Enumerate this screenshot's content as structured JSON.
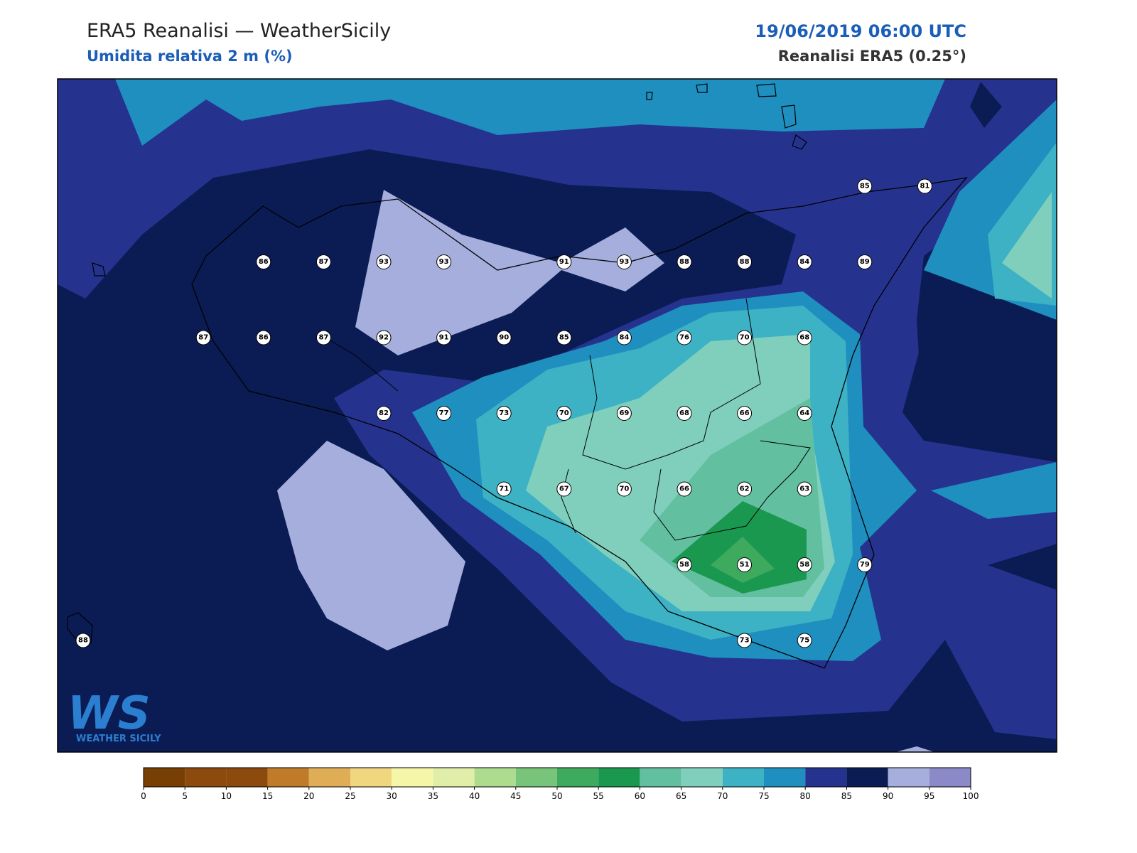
{
  "header": {
    "title": "ERA5 Reanalisi — WeatherSicily",
    "subtitle": "Umidita relativa 2 m (%)",
    "datetime": "19/06/2019 06:00 UTC",
    "source": "Reanalisi ERA5 (0.25°)"
  },
  "logo": {
    "mark": "WS",
    "text": "WEATHER SICILY"
  },
  "stations": {
    "rows": [
      [
        null,
        null,
        null,
        null,
        null,
        null,
        null,
        null,
        null,
        null,
        null,
        null,
        null,
        85,
        81
      ],
      [
        null,
        null,
        null,
        86,
        87,
        93,
        93,
        null,
        91,
        93,
        88,
        88,
        84,
        89,
        null
      ],
      [
        null,
        null,
        87,
        86,
        87,
        92,
        91,
        90,
        85,
        84,
        76,
        70,
        68,
        null,
        null
      ],
      [
        null,
        null,
        null,
        null,
        null,
        82,
        77,
        73,
        70,
        69,
        68,
        66,
        64,
        null,
        null
      ],
      [
        null,
        null,
        null,
        null,
        null,
        null,
        null,
        71,
        67,
        70,
        66,
        62,
        63,
        null,
        null
      ],
      [
        null,
        null,
        null,
        null,
        null,
        null,
        null,
        null,
        null,
        null,
        58,
        51,
        58,
        79,
        null
      ],
      [
        88,
        null,
        null,
        null,
        null,
        null,
        null,
        null,
        null,
        null,
        null,
        73,
        75,
        null,
        null
      ]
    ]
  },
  "colorbar": {
    "levels": [
      0,
      5,
      10,
      15,
      20,
      25,
      30,
      35,
      40,
      45,
      50,
      55,
      60,
      65,
      70,
      75,
      80,
      85,
      90,
      95,
      100
    ],
    "colors": [
      "#783f04",
      "#8c4a0d",
      "#8c4a0d",
      "#bf7a2a",
      "#e0ad57",
      "#f0d67f",
      "#f6f6a8",
      "#e0eeaa",
      "#aedc8f",
      "#78c47a",
      "#3daa5e",
      "#1b9850",
      "#62bfa0",
      "#80cfbd",
      "#3db2c4",
      "#1f8fc0",
      "#25338f",
      "#0b1c54",
      "#a5aedc",
      "#8c89c8"
    ]
  }
}
